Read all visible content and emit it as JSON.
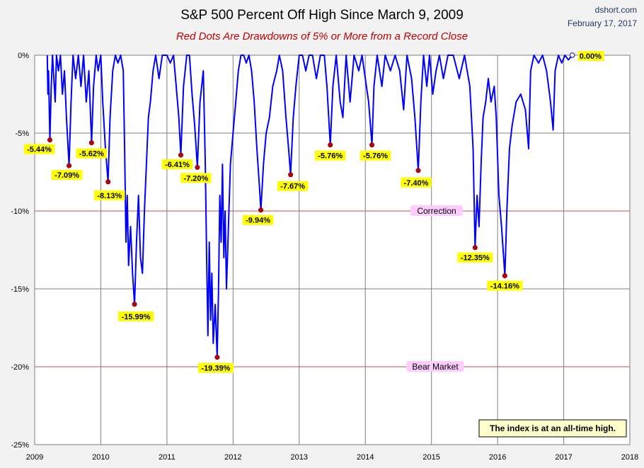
{
  "header": {
    "title": "S&P 500 Percent Off High Since March 9, 2009",
    "subtitle": "Red Dots Are Drawdowns of 5% or More from a Record Close",
    "source": "dshort.com",
    "date": "February 17, 2017"
  },
  "note": "The index is at an all-time high.",
  "colors": {
    "line": "#0000ff",
    "dot": "#c00000",
    "threshold": "#c0504d",
    "grid": "#7f7f7f",
    "label_bg": "#ffff00",
    "zone_bg": "#ffccff",
    "note_bg": "#ffffcc"
  },
  "chart_data": {
    "type": "line",
    "title": "S&P 500 Percent Off High Since March 9, 2009",
    "xlabel": "",
    "ylabel": "",
    "xlim": [
      2009.0,
      2018.0
    ],
    "ylim": [
      -25,
      0
    ],
    "grid": true,
    "x_ticks": [
      "2009",
      "2010",
      "2011",
      "2012",
      "2013",
      "2014",
      "2015",
      "2016",
      "2017",
      "2018"
    ],
    "y_ticks": [
      "0%",
      "-5%",
      "-10%",
      "-15%",
      "-20%",
      "-25%"
    ],
    "thresholds": [
      {
        "value": -10,
        "label": "Correction"
      },
      {
        "value": -20,
        "label": "Bear Market"
      }
    ],
    "drawdowns": [
      {
        "x": 2009.23,
        "y": -5.44,
        "label": "-5.44%"
      },
      {
        "x": 2009.52,
        "y": -7.09,
        "label": "-7.09%"
      },
      {
        "x": 2009.86,
        "y": -5.62,
        "label": "-5.62%"
      },
      {
        "x": 2010.11,
        "y": -8.13,
        "label": "-8.13%"
      },
      {
        "x": 2010.51,
        "y": -15.99,
        "label": "-15.99%"
      },
      {
        "x": 2011.21,
        "y": -6.41,
        "label": "-6.41%"
      },
      {
        "x": 2011.46,
        "y": -7.2,
        "label": "-7.20%"
      },
      {
        "x": 2011.76,
        "y": -19.39,
        "label": "-19.39%"
      },
      {
        "x": 2012.42,
        "y": -9.94,
        "label": "-9.94%"
      },
      {
        "x": 2012.87,
        "y": -7.67,
        "label": "-7.67%"
      },
      {
        "x": 2013.47,
        "y": -5.76,
        "label": "-5.76%"
      },
      {
        "x": 2014.1,
        "y": -5.76,
        "label": "-5.76%"
      },
      {
        "x": 2014.8,
        "y": -7.4,
        "label": "-7.40%"
      },
      {
        "x": 2015.66,
        "y": -12.35,
        "label": "-12.35%"
      },
      {
        "x": 2016.11,
        "y": -14.16,
        "label": "-14.16%"
      }
    ],
    "current": {
      "x": 2017.13,
      "y": 0.0,
      "label": "0.00%"
    },
    "series": [
      {
        "values": [
          [
            2009.19,
            0
          ],
          [
            2009.2,
            -2.5
          ],
          [
            2009.21,
            -1.0
          ],
          [
            2009.23,
            -5.44
          ],
          [
            2009.25,
            -2.0
          ],
          [
            2009.27,
            0
          ],
          [
            2009.29,
            -1.5
          ],
          [
            2009.31,
            -3.0
          ],
          [
            2009.33,
            0
          ],
          [
            2009.36,
            -1.0
          ],
          [
            2009.39,
            0
          ],
          [
            2009.42,
            -2.5
          ],
          [
            2009.45,
            -1.0
          ],
          [
            2009.48,
            -4.0
          ],
          [
            2009.52,
            -7.09
          ],
          [
            2009.55,
            -3.0
          ],
          [
            2009.58,
            0
          ],
          [
            2009.62,
            -1.5
          ],
          [
            2009.66,
            0
          ],
          [
            2009.7,
            -2.0
          ],
          [
            2009.74,
            0
          ],
          [
            2009.78,
            -3.0
          ],
          [
            2009.82,
            -1.0
          ],
          [
            2009.86,
            -5.62
          ],
          [
            2009.89,
            -2.0
          ],
          [
            2009.93,
            0
          ],
          [
            2009.96,
            -1.0
          ],
          [
            2010.0,
            0
          ],
          [
            2010.03,
            -3.0
          ],
          [
            2010.07,
            -6.0
          ],
          [
            2010.11,
            -8.13
          ],
          [
            2010.14,
            -4.0
          ],
          [
            2010.18,
            -1.0
          ],
          [
            2010.22,
            0
          ],
          [
            2010.26,
            -0.5
          ],
          [
            2010.3,
            0
          ],
          [
            2010.34,
            -1.0
          ],
          [
            2010.36,
            -6.0
          ],
          [
            2010.38,
            -12.0
          ],
          [
            2010.4,
            -9.0
          ],
          [
            2010.42,
            -13.5
          ],
          [
            2010.45,
            -11.0
          ],
          [
            2010.48,
            -14.0
          ],
          [
            2010.51,
            -15.99
          ],
          [
            2010.54,
            -12.0
          ],
          [
            2010.57,
            -9.0
          ],
          [
            2010.6,
            -13.0
          ],
          [
            2010.63,
            -14.0
          ],
          [
            2010.66,
            -10.0
          ],
          [
            2010.69,
            -7.0
          ],
          [
            2010.72,
            -4.0
          ],
          [
            2010.75,
            -3.0
          ],
          [
            2010.79,
            -1.0
          ],
          [
            2010.83,
            0
          ],
          [
            2010.88,
            -1.5
          ],
          [
            2010.93,
            0
          ],
          [
            2011.0,
            0
          ],
          [
            2011.05,
            -0.5
          ],
          [
            2011.1,
            0
          ],
          [
            2011.14,
            -2.0
          ],
          [
            2011.18,
            -4.0
          ],
          [
            2011.21,
            -6.41
          ],
          [
            2011.25,
            -2.0
          ],
          [
            2011.3,
            0
          ],
          [
            2011.34,
            0
          ],
          [
            2011.38,
            -2.5
          ],
          [
            2011.42,
            -4.5
          ],
          [
            2011.46,
            -7.2
          ],
          [
            2011.5,
            -3.0
          ],
          [
            2011.55,
            -1.0
          ],
          [
            2011.58,
            -7.0
          ],
          [
            2011.6,
            -13.0
          ],
          [
            2011.62,
            -18.0
          ],
          [
            2011.64,
            -12.0
          ],
          [
            2011.66,
            -17.0
          ],
          [
            2011.68,
            -14.0
          ],
          [
            2011.7,
            -18.5
          ],
          [
            2011.73,
            -16.0
          ],
          [
            2011.76,
            -19.39
          ],
          [
            2011.78,
            -15.0
          ],
          [
            2011.8,
            -9.0
          ],
          [
            2011.82,
            -12.0
          ],
          [
            2011.84,
            -7.0
          ],
          [
            2011.86,
            -13.0
          ],
          [
            2011.88,
            -10.0
          ],
          [
            2011.9,
            -15.0
          ],
          [
            2011.93,
            -11.0
          ],
          [
            2011.96,
            -7.0
          ],
          [
            2012.0,
            -5.0
          ],
          [
            2012.04,
            -3.0
          ],
          [
            2012.08,
            -1.0
          ],
          [
            2012.12,
            0
          ],
          [
            2012.16,
            0
          ],
          [
            2012.2,
            -0.5
          ],
          [
            2012.24,
            0
          ],
          [
            2012.28,
            -1.0
          ],
          [
            2012.32,
            -3.0
          ],
          [
            2012.36,
            -6.0
          ],
          [
            2012.4,
            -8.5
          ],
          [
            2012.42,
            -9.94
          ],
          [
            2012.46,
            -7.0
          ],
          [
            2012.5,
            -5.0
          ],
          [
            2012.55,
            -4.0
          ],
          [
            2012.6,
            -2.0
          ],
          [
            2012.66,
            -1.0
          ],
          [
            2012.7,
            0
          ],
          [
            2012.75,
            -1.0
          ],
          [
            2012.8,
            -4.0
          ],
          [
            2012.84,
            -6.0
          ],
          [
            2012.87,
            -7.67
          ],
          [
            2012.91,
            -4.0
          ],
          [
            2012.95,
            -2.0
          ],
          [
            2013.0,
            0
          ],
          [
            2013.05,
            0
          ],
          [
            2013.1,
            -1.0
          ],
          [
            2013.15,
            0
          ],
          [
            2013.2,
            0
          ],
          [
            2013.26,
            -1.5
          ],
          [
            2013.32,
            0
          ],
          [
            2013.38,
            0
          ],
          [
            2013.42,
            -2.0
          ],
          [
            2013.47,
            -5.76
          ],
          [
            2013.51,
            -2.0
          ],
          [
            2013.56,
            0
          ],
          [
            2013.62,
            -3.0
          ],
          [
            2013.66,
            -4.0
          ],
          [
            2013.71,
            0
          ],
          [
            2013.77,
            -3.0
          ],
          [
            2013.83,
            0
          ],
          [
            2013.9,
            -1.0
          ],
          [
            2013.95,
            0
          ],
          [
            2014.0,
            -1.5
          ],
          [
            2014.05,
            -3.0
          ],
          [
            2014.1,
            -5.76
          ],
          [
            2014.13,
            -2.0
          ],
          [
            2014.18,
            0
          ],
          [
            2014.25,
            -2.0
          ],
          [
            2014.3,
            0
          ],
          [
            2014.38,
            -1.0
          ],
          [
            2014.45,
            0
          ],
          [
            2014.52,
            -1.0
          ],
          [
            2014.58,
            -3.5
          ],
          [
            2014.63,
            0
          ],
          [
            2014.7,
            -1.5
          ],
          [
            2014.75,
            -4.0
          ],
          [
            2014.8,
            -7.4
          ],
          [
            2014.84,
            -3.0
          ],
          [
            2014.88,
            0
          ],
          [
            2014.93,
            -2.0
          ],
          [
            2014.97,
            0
          ],
          [
            2015.02,
            -2.5
          ],
          [
            2015.07,
            -1.0
          ],
          [
            2015.12,
            0
          ],
          [
            2015.18,
            -1.5
          ],
          [
            2015.25,
            0
          ],
          [
            2015.33,
            0
          ],
          [
            2015.42,
            -1.5
          ],
          [
            2015.5,
            0
          ],
          [
            2015.58,
            -2.0
          ],
          [
            2015.63,
            -6.0
          ],
          [
            2015.66,
            -12.35
          ],
          [
            2015.69,
            -9.0
          ],
          [
            2015.72,
            -11.0
          ],
          [
            2015.75,
            -7.0
          ],
          [
            2015.78,
            -4.0
          ],
          [
            2015.82,
            -3.0
          ],
          [
            2015.86,
            -1.5
          ],
          [
            2015.9,
            -3.0
          ],
          [
            2015.95,
            -2.0
          ],
          [
            2015.98,
            -4.0
          ],
          [
            2016.02,
            -9.0
          ],
          [
            2016.06,
            -11.0
          ],
          [
            2016.11,
            -14.16
          ],
          [
            2016.14,
            -10.0
          ],
          [
            2016.18,
            -6.0
          ],
          [
            2016.22,
            -4.5
          ],
          [
            2016.28,
            -3.0
          ],
          [
            2016.35,
            -2.5
          ],
          [
            2016.42,
            -3.5
          ],
          [
            2016.47,
            -6.0
          ],
          [
            2016.5,
            -1.0
          ],
          [
            2016.55,
            0
          ],
          [
            2016.62,
            -0.5
          ],
          [
            2016.68,
            0
          ],
          [
            2016.74,
            -1.0
          ],
          [
            2016.8,
            -3.0
          ],
          [
            2016.84,
            -4.8
          ],
          [
            2016.87,
            -1.0
          ],
          [
            2016.92,
            0
          ],
          [
            2016.97,
            -0.5
          ],
          [
            2017.02,
            0
          ],
          [
            2017.07,
            -0.3
          ],
          [
            2017.13,
            0.0
          ]
        ]
      }
    ]
  }
}
